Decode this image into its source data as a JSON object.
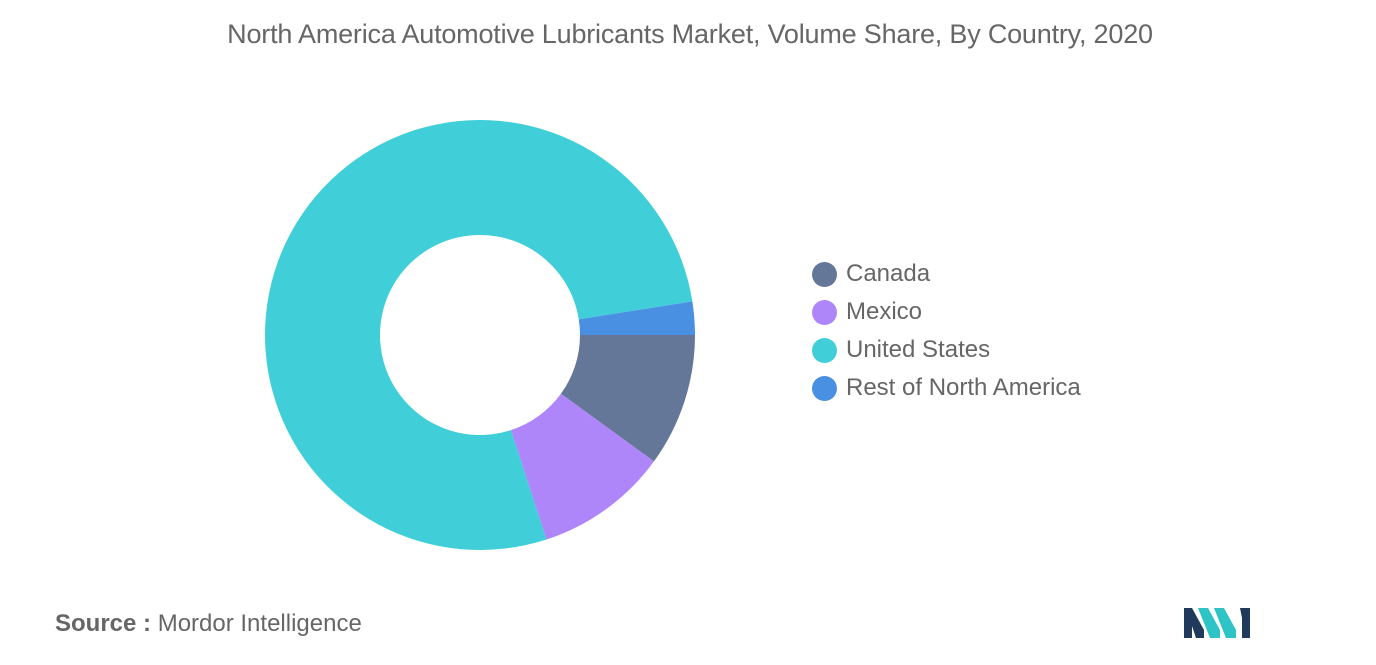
{
  "title": "North America Automotive Lubricants Market, Volume Share, By Country, 2020",
  "source": {
    "prefix": "Source :",
    "text": "Mordor Intelligence"
  },
  "chart_data": {
    "type": "pie",
    "variant": "donut",
    "title": "North America Automotive Lubricants Market, Volume Share, By Country, 2020",
    "legend_position": "right",
    "start_angle_note": "clockwise from 3 o'clock",
    "slices": [
      {
        "label": "Canada",
        "value": 10,
        "color": "#657798"
      },
      {
        "label": "Mexico",
        "value": 10,
        "color": "#AF86FA"
      },
      {
        "label": "United States",
        "value": 77.5,
        "color": "#40CFD9"
      },
      {
        "label": "Rest of North America",
        "value": 2.5,
        "color": "#4A90E2"
      }
    ]
  },
  "logo": {
    "icon": "mordor-intelligence-logo",
    "colors": [
      "#1F3A5A",
      "#2EC4C6"
    ]
  }
}
